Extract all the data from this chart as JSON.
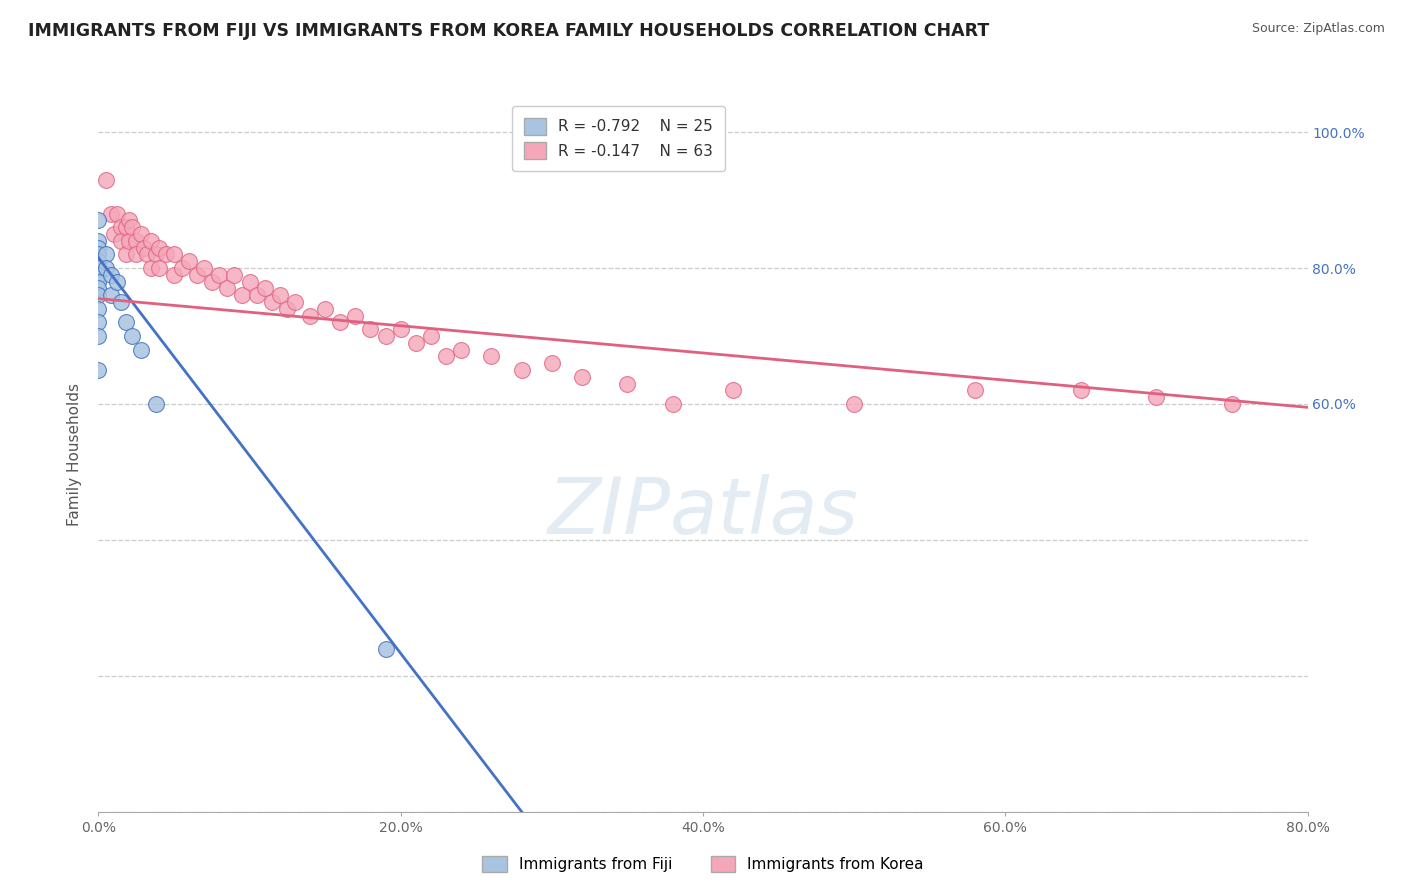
{
  "title": "IMMIGRANTS FROM FIJI VS IMMIGRANTS FROM KOREA FAMILY HOUSEHOLDS CORRELATION CHART",
  "source": "Source: ZipAtlas.com",
  "ylabel": "Family Households",
  "watermark": "ZIPatlas",
  "xlim": [
    0.0,
    0.8
  ],
  "ylim": [
    0.0,
    1.05
  ],
  "ytick_vals": [
    0.0,
    0.2,
    0.4,
    0.6,
    0.8,
    1.0
  ],
  "xtick_vals": [
    0.0,
    0.2,
    0.4,
    0.6,
    0.8
  ],
  "right_ytick_vals": [
    0.6,
    0.8,
    1.0
  ],
  "right_ytick_labels": [
    "60.0%",
    "80.0%",
    "100.0%"
  ],
  "fiji_R": -0.792,
  "fiji_N": 25,
  "korea_R": -0.147,
  "korea_N": 63,
  "fiji_color": "#a8c4e0",
  "korea_color": "#f4a7b9",
  "fiji_line_color": "#4472c4",
  "korea_line_color": "#e06080",
  "grid_color": "#cccccc",
  "background_color": "#ffffff",
  "fiji_scatter_x": [
    0.0,
    0.0,
    0.0,
    0.0,
    0.0,
    0.0,
    0.0,
    0.0,
    0.0,
    0.0,
    0.0,
    0.0,
    0.0,
    0.0,
    0.005,
    0.005,
    0.008,
    0.008,
    0.012,
    0.015,
    0.018,
    0.022,
    0.028,
    0.038,
    0.19
  ],
  "fiji_scatter_y": [
    0.87,
    0.84,
    0.83,
    0.82,
    0.81,
    0.8,
    0.79,
    0.78,
    0.77,
    0.76,
    0.74,
    0.72,
    0.7,
    0.65,
    0.82,
    0.8,
    0.79,
    0.76,
    0.78,
    0.75,
    0.72,
    0.7,
    0.68,
    0.6,
    0.24
  ],
  "korea_scatter_x": [
    0.005,
    0.008,
    0.01,
    0.012,
    0.015,
    0.015,
    0.018,
    0.018,
    0.02,
    0.02,
    0.022,
    0.025,
    0.025,
    0.028,
    0.03,
    0.032,
    0.035,
    0.035,
    0.038,
    0.04,
    0.04,
    0.045,
    0.05,
    0.05,
    0.055,
    0.06,
    0.065,
    0.07,
    0.075,
    0.08,
    0.085,
    0.09,
    0.095,
    0.1,
    0.105,
    0.11,
    0.115,
    0.12,
    0.125,
    0.13,
    0.14,
    0.15,
    0.16,
    0.17,
    0.18,
    0.19,
    0.2,
    0.21,
    0.22,
    0.23,
    0.24,
    0.26,
    0.28,
    0.3,
    0.32,
    0.35,
    0.38,
    0.42,
    0.5,
    0.58,
    0.65,
    0.7,
    0.75
  ],
  "korea_scatter_y": [
    0.93,
    0.88,
    0.85,
    0.88,
    0.86,
    0.84,
    0.86,
    0.82,
    0.87,
    0.84,
    0.86,
    0.84,
    0.82,
    0.85,
    0.83,
    0.82,
    0.84,
    0.8,
    0.82,
    0.83,
    0.8,
    0.82,
    0.82,
    0.79,
    0.8,
    0.81,
    0.79,
    0.8,
    0.78,
    0.79,
    0.77,
    0.79,
    0.76,
    0.78,
    0.76,
    0.77,
    0.75,
    0.76,
    0.74,
    0.75,
    0.73,
    0.74,
    0.72,
    0.73,
    0.71,
    0.7,
    0.71,
    0.69,
    0.7,
    0.67,
    0.68,
    0.67,
    0.65,
    0.66,
    0.64,
    0.63,
    0.6,
    0.62,
    0.6,
    0.62,
    0.62,
    0.61,
    0.6
  ],
  "fiji_line_x": [
    0.0,
    0.28
  ],
  "fiji_line_y": [
    0.815,
    0.0
  ],
  "korea_line_x": [
    0.0,
    0.8
  ],
  "korea_line_y": [
    0.755,
    0.595
  ]
}
